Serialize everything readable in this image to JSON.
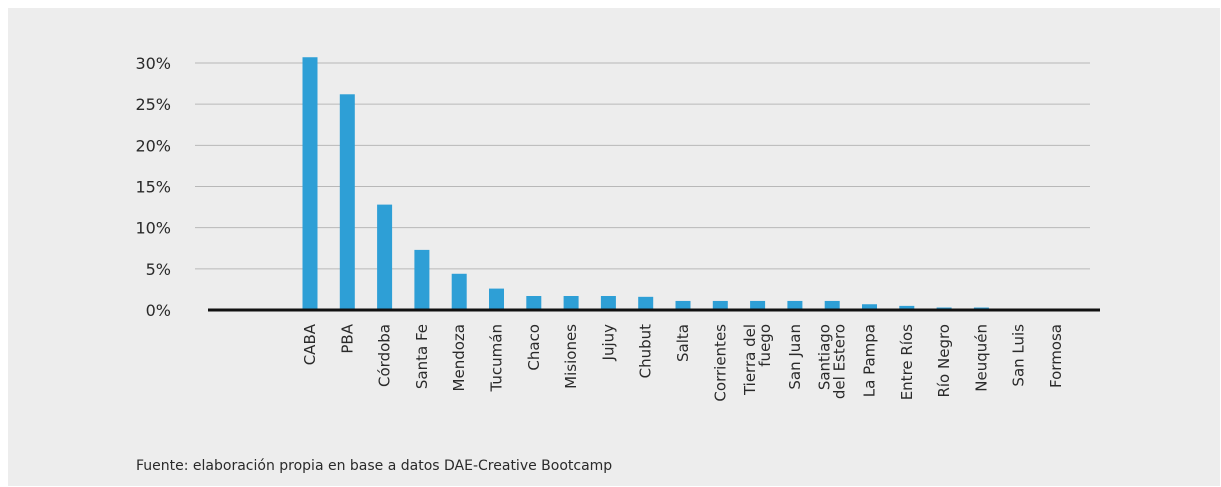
{
  "chart_data": {
    "type": "bar",
    "categories": [
      "CABA",
      "PBA",
      "Córdoba",
      "Santa Fe",
      "Mendoza",
      "Tucumán",
      "Chaco",
      "Misiones",
      "Jujuy",
      "Chubut",
      "Salta",
      "Corrientes",
      "Tierra del fuego",
      "San Juan",
      "Santiago del Estero",
      "La Pampa",
      "Entre Ríos",
      "Río Negro",
      "Neuquén",
      "San Luis",
      "Formosa"
    ],
    "category_lines": [
      [
        "CABA"
      ],
      [
        "PBA"
      ],
      [
        "Córdoba"
      ],
      [
        "Santa Fe"
      ],
      [
        "Mendoza"
      ],
      [
        "Tucumán"
      ],
      [
        "Chaco"
      ],
      [
        "Misiones"
      ],
      [
        "Jujuy"
      ],
      [
        "Chubut"
      ],
      [
        "Salta"
      ],
      [
        "Corrientes"
      ],
      [
        "Tierra del",
        "fuego"
      ],
      [
        "San Juan"
      ],
      [
        "Santiago",
        "del Estero"
      ],
      [
        "La Pampa"
      ],
      [
        "Entre Ríos"
      ],
      [
        "Río Negro"
      ],
      [
        "Neuquén"
      ],
      [
        "San Luis"
      ],
      [
        "Formosa"
      ]
    ],
    "values": [
      30.7,
      26.2,
      12.8,
      7.3,
      4.4,
      2.6,
      1.7,
      1.7,
      1.7,
      1.6,
      1.1,
      1.1,
      1.1,
      1.1,
      1.1,
      0.7,
      0.5,
      0.3,
      0.3,
      0,
      0
    ],
    "yticks": [
      0,
      5,
      10,
      15,
      20,
      25,
      30
    ],
    "ytick_labels": [
      "0%",
      "5%",
      "10%",
      "15%",
      "20%",
      "25%",
      "30%"
    ],
    "ylim": [
      0,
      30
    ],
    "grid": true,
    "legend": "none",
    "title": "",
    "xlabel": "",
    "ylabel": "",
    "bar_color": "#2e9fd6",
    "grid_color": "#b8b8b8",
    "baseline_color": "#111111"
  },
  "source_note": "Fuente: elaboración propia en base a datos DAE-Creative Bootcamp"
}
